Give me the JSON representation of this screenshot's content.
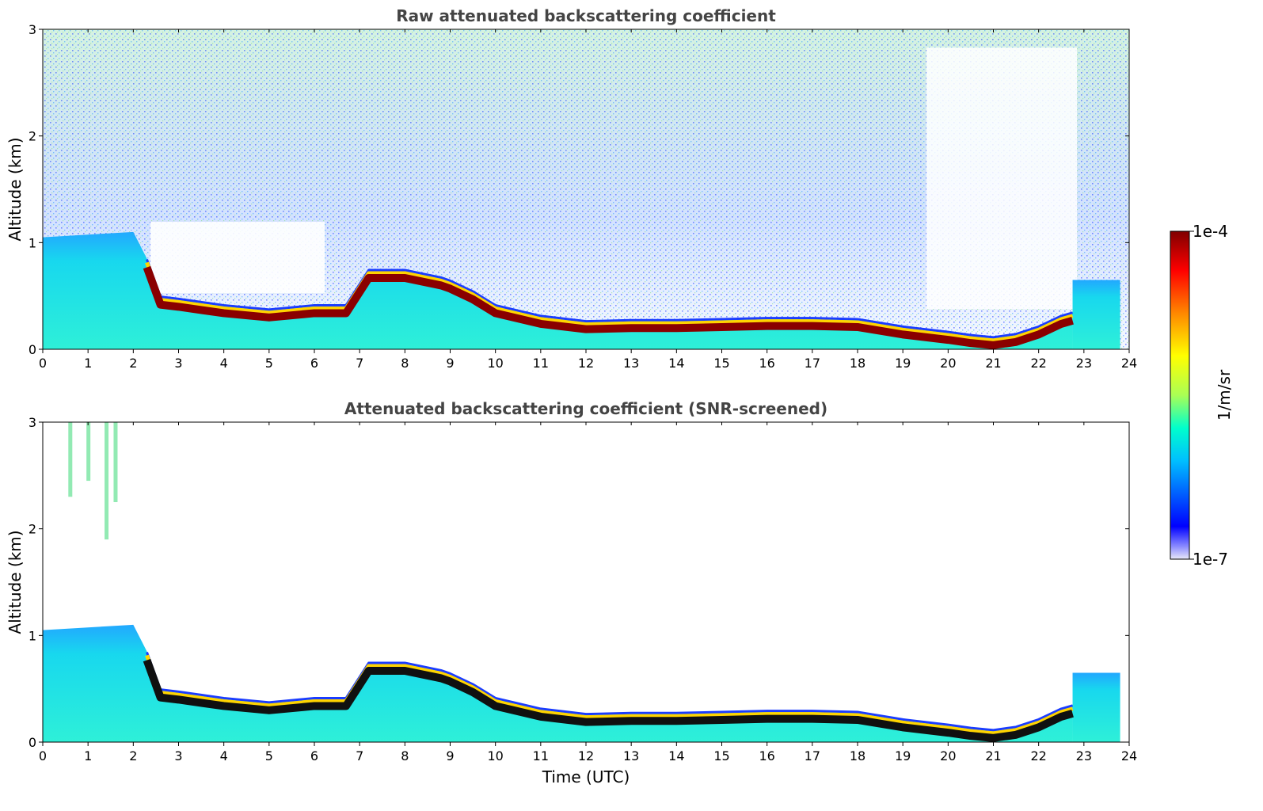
{
  "chart_data": [
    {
      "type": "heatmap",
      "title": "Raw attenuated backscattering coefficient",
      "xlabel": "",
      "ylabel": "Altitude (km)",
      "xlim": [
        0,
        24
      ],
      "ylim": [
        0,
        3
      ],
      "x_ticks": [
        "0",
        "1",
        "2",
        "3",
        "4",
        "5",
        "6",
        "7",
        "8",
        "9",
        "10",
        "11",
        "12",
        "13",
        "14",
        "15",
        "16",
        "17",
        "18",
        "19",
        "20",
        "21",
        "22",
        "23",
        "24"
      ],
      "y_ticks": [
        "0",
        "1",
        "2",
        "3"
      ],
      "boundary_layer_top_km": {
        "x": [
          0,
          2.0,
          2.3,
          2.6,
          3,
          4,
          5,
          6,
          6.7,
          7.2,
          8,
          8.8,
          9.0,
          9.5,
          10,
          11,
          12,
          13,
          14,
          15,
          16,
          17,
          18,
          19,
          20,
          20.5,
          21,
          21.5,
          22,
          22.5,
          22.75
        ],
        "y": [
          1.05,
          1.1,
          0.85,
          0.5,
          0.48,
          0.42,
          0.38,
          0.42,
          0.42,
          0.75,
          0.75,
          0.68,
          0.65,
          0.55,
          0.42,
          0.32,
          0.27,
          0.28,
          0.28,
          0.29,
          0.3,
          0.3,
          0.29,
          0.22,
          0.17,
          0.14,
          0.12,
          0.15,
          0.22,
          0.32,
          0.35
        ]
      },
      "residual_layer_top_km": {
        "x": [
          22.75,
          23.8
        ],
        "y": [
          0.65,
          0.65
        ]
      }
    },
    {
      "type": "heatmap",
      "title": "Attenuated backscattering coefficient (SNR-screened)",
      "xlabel": "Time (UTC)",
      "ylabel": "Altitude (km)",
      "xlim": [
        0,
        24
      ],
      "ylim": [
        0,
        3
      ],
      "x_ticks": [
        "0",
        "1",
        "2",
        "3",
        "4",
        "5",
        "6",
        "7",
        "8",
        "9",
        "10",
        "11",
        "12",
        "13",
        "14",
        "15",
        "16",
        "17",
        "18",
        "19",
        "20",
        "21",
        "22",
        "23",
        "24"
      ],
      "y_ticks": [
        "0",
        "1",
        "2",
        "3"
      ]
    }
  ],
  "colorbar": {
    "label": "1/m/sr",
    "max_label": "1e-4",
    "min_label": "1e-7",
    "colormap": "jet",
    "colors": [
      "#e8e8f8",
      "#0000ff",
      "#00bfff",
      "#00ffcc",
      "#aaff55",
      "#ffff00",
      "#ff8800",
      "#ff0000",
      "#800000"
    ]
  }
}
